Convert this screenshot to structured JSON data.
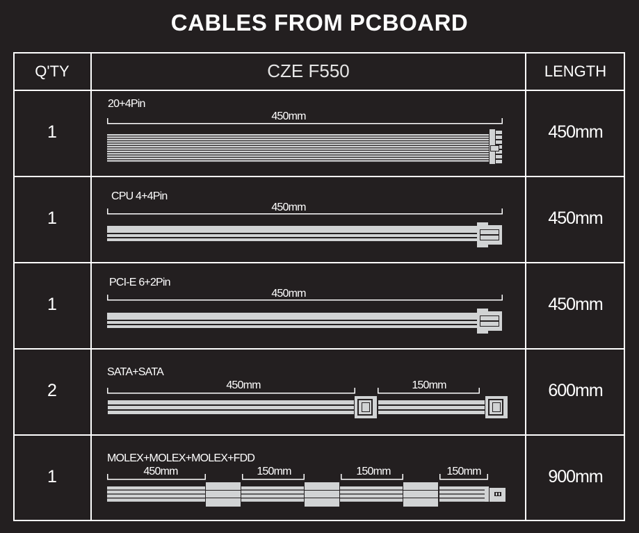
{
  "title": "CABLES FROM PCBOARD",
  "headers": {
    "qty": "Q'TY",
    "model": "CZE F550",
    "length": "LENGTH"
  },
  "colors": {
    "background": "#231f20",
    "cable": "#d1d3d4",
    "lines": "#ffffff"
  },
  "rows": [
    {
      "qty": "1",
      "name": "20+4Pin",
      "dims": [
        "450mm"
      ],
      "length": "450mm"
    },
    {
      "qty": "1",
      "name": "CPU 4+4Pin",
      "dims": [
        "450mm"
      ],
      "length": "450mm"
    },
    {
      "qty": "1",
      "name": "PCI-E 6+2Pin",
      "dims": [
        "450mm"
      ],
      "length": "450mm"
    },
    {
      "qty": "2",
      "name": "SATA+SATA",
      "dims": [
        "450mm",
        "150mm"
      ],
      "length": "600mm"
    },
    {
      "qty": "1",
      "name": "MOLEX+MOLEX+MOLEX+FDD",
      "dims": [
        "450mm",
        "150mm",
        "150mm",
        "150mm"
      ],
      "length": "900mm"
    }
  ]
}
